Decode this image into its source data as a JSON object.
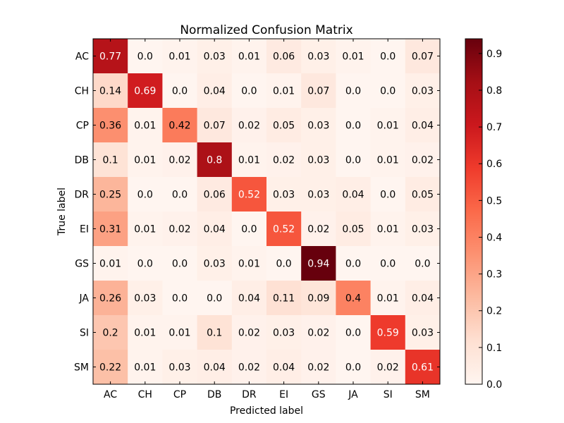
{
  "chart_data": {
    "type": "heatmap",
    "title": "Normalized Confusion Matrix",
    "xlabel": "Predicted label",
    "ylabel": "True label",
    "x_categories": [
      "AC",
      "CH",
      "CP",
      "DB",
      "DR",
      "EI",
      "GS",
      "JA",
      "SI",
      "SM"
    ],
    "y_categories": [
      "AC",
      "CH",
      "CP",
      "DB",
      "DR",
      "EI",
      "GS",
      "JA",
      "SI",
      "SM"
    ],
    "values": [
      [
        0.77,
        0.0,
        0.01,
        0.03,
        0.01,
        0.06,
        0.03,
        0.01,
        0.0,
        0.07
      ],
      [
        0.14,
        0.69,
        0.0,
        0.04,
        0.0,
        0.01,
        0.07,
        0.0,
        0.0,
        0.03
      ],
      [
        0.36,
        0.01,
        0.42,
        0.07,
        0.02,
        0.05,
        0.03,
        0.0,
        0.01,
        0.04
      ],
      [
        0.1,
        0.01,
        0.02,
        0.8,
        0.01,
        0.02,
        0.03,
        0.0,
        0.01,
        0.02
      ],
      [
        0.25,
        0.0,
        0.0,
        0.06,
        0.52,
        0.03,
        0.03,
        0.04,
        0.0,
        0.05
      ],
      [
        0.31,
        0.01,
        0.02,
        0.04,
        0.0,
        0.52,
        0.02,
        0.05,
        0.01,
        0.03
      ],
      [
        0.01,
        0.0,
        0.0,
        0.03,
        0.01,
        0.0,
        0.94,
        0.0,
        0.0,
        0.0
      ],
      [
        0.26,
        0.03,
        0.0,
        0.0,
        0.04,
        0.11,
        0.09,
        0.4,
        0.01,
        0.04
      ],
      [
        0.2,
        0.01,
        0.01,
        0.1,
        0.02,
        0.03,
        0.02,
        0.0,
        0.59,
        0.03
      ],
      [
        0.22,
        0.01,
        0.03,
        0.04,
        0.02,
        0.04,
        0.02,
        0.0,
        0.02,
        0.61
      ]
    ],
    "value_labels": [
      [
        "0.77",
        "0.0",
        "0.01",
        "0.03",
        "0.01",
        "0.06",
        "0.03",
        "0.01",
        "0.0",
        "0.07"
      ],
      [
        "0.14",
        "0.69",
        "0.0",
        "0.04",
        "0.0",
        "0.01",
        "0.07",
        "0.0",
        "0.0",
        "0.03"
      ],
      [
        "0.36",
        "0.01",
        "0.42",
        "0.07",
        "0.02",
        "0.05",
        "0.03",
        "0.0",
        "0.01",
        "0.04"
      ],
      [
        "0.1",
        "0.01",
        "0.02",
        "0.8",
        "0.01",
        "0.02",
        "0.03",
        "0.0",
        "0.01",
        "0.02"
      ],
      [
        "0.25",
        "0.0",
        "0.0",
        "0.06",
        "0.52",
        "0.03",
        "0.03",
        "0.04",
        "0.0",
        "0.05"
      ],
      [
        "0.31",
        "0.01",
        "0.02",
        "0.04",
        "0.0",
        "0.52",
        "0.02",
        "0.05",
        "0.01",
        "0.03"
      ],
      [
        "0.01",
        "0.0",
        "0.0",
        "0.03",
        "0.01",
        "0.0",
        "0.94",
        "0.0",
        "0.0",
        "0.0"
      ],
      [
        "0.26",
        "0.03",
        "0.0",
        "0.0",
        "0.04",
        "0.11",
        "0.09",
        "0.4",
        "0.01",
        "0.04"
      ],
      [
        "0.2",
        "0.01",
        "0.01",
        "0.1",
        "0.02",
        "0.03",
        "0.02",
        "0.0",
        "0.59",
        "0.03"
      ],
      [
        "0.22",
        "0.01",
        "0.03",
        "0.04",
        "0.02",
        "0.04",
        "0.02",
        "0.0",
        "0.02",
        "0.61"
      ]
    ],
    "colormap": "Reds",
    "color_range": [
      0.0,
      0.94
    ],
    "colorbar_ticks": [
      "0.0",
      "0.1",
      "0.2",
      "0.3",
      "0.4",
      "0.5",
      "0.6",
      "0.7",
      "0.8",
      "0.9"
    ],
    "colorbar_tick_values": [
      0.0,
      0.1,
      0.2,
      0.3,
      0.4,
      0.5,
      0.6,
      0.7,
      0.8,
      0.9
    ],
    "text_color_threshold": 0.47,
    "grid": false,
    "legend": "colorbar-right"
  }
}
